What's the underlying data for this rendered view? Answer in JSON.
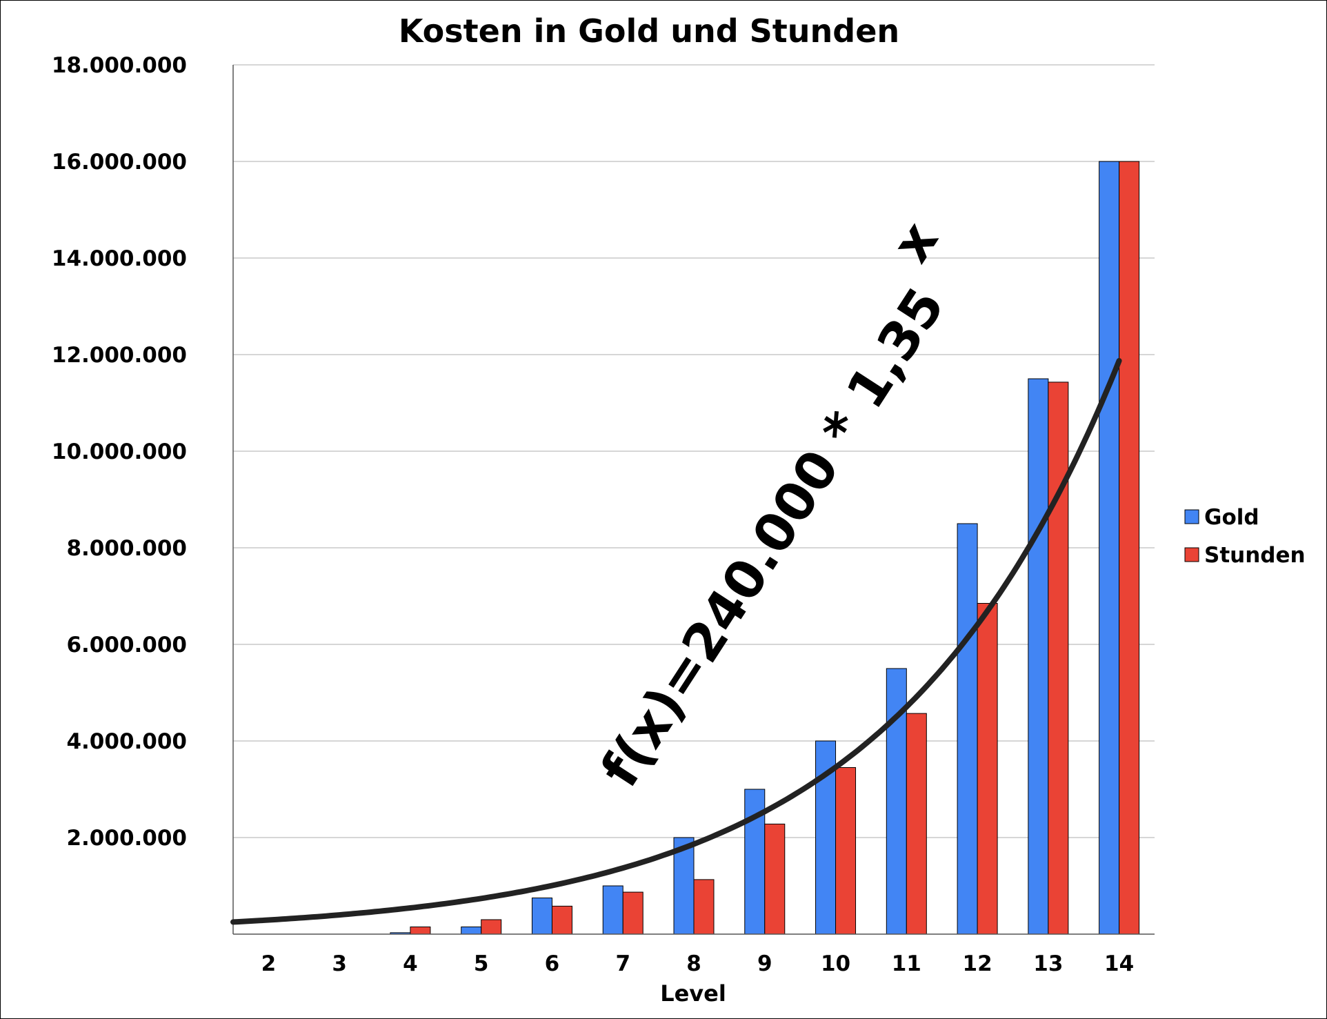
{
  "chart_data": {
    "type": "bar",
    "title": "Kosten in Gold und Stunden",
    "xlabel": "Level",
    "ylabel": "",
    "ylim": [
      0,
      18000000
    ],
    "y_ticks": [
      "2.000.000",
      "4.000.000",
      "6.000.000",
      "8.000.000",
      "10.000.000",
      "12.000.000",
      "14.000.000",
      "16.000.000",
      "18.000.000"
    ],
    "y_tick_values": [
      2000000,
      4000000,
      6000000,
      8000000,
      10000000,
      12000000,
      14000000,
      16000000,
      18000000
    ],
    "categories": [
      "2",
      "3",
      "4",
      "5",
      "6",
      "7",
      "8",
      "9",
      "10",
      "11",
      "12",
      "13",
      "14"
    ],
    "series": [
      {
        "name": "Gold",
        "color": "#4285f4",
        "values": [
          0,
          0,
          30000,
          150000,
          750000,
          1000000,
          2000000,
          3000000,
          4000000,
          5500000,
          8500000,
          11500000,
          16000000
        ]
      },
      {
        "name": "Stunden",
        "color": "#ea4335",
        "values": [
          0,
          0,
          150000,
          300000,
          580000,
          870000,
          1130000,
          2280000,
          3450000,
          4570000,
          6850000,
          11430000,
          16000000
        ]
      }
    ],
    "trendline": {
      "formula_text": "f(x)=240.000 * 1,35",
      "formula_exponent": "x",
      "a": 240000,
      "b": 1.35,
      "color": "#222222"
    },
    "grid": true,
    "legend_position": "right"
  }
}
